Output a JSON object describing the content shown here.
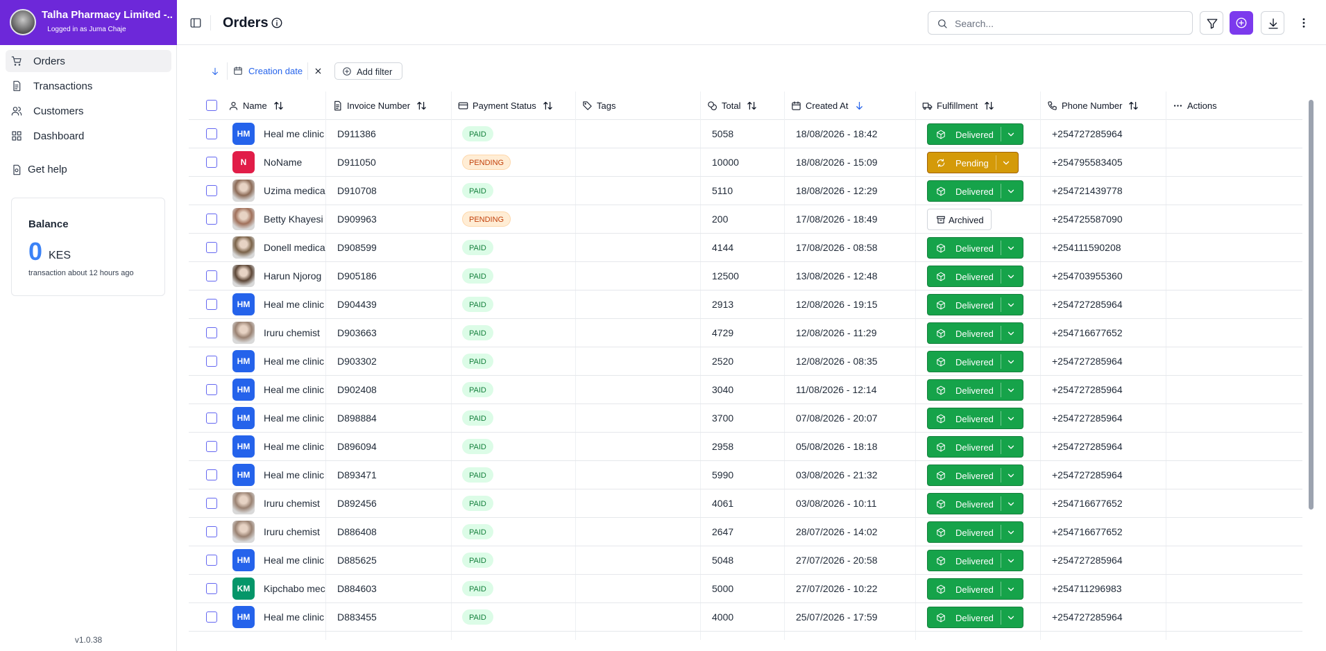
{
  "sidebar": {
    "org_name": "Talha Pharmacy Limited -...",
    "logged_in": "Logged in as Juma Chaje",
    "nav": [
      "Orders",
      "Transactions",
      "Customers",
      "Dashboard"
    ],
    "help": "Get help",
    "balance": {
      "title": "Balance",
      "amount": "0",
      "currency": "KES",
      "note": "transaction about 12 hours ago"
    },
    "version": "v1.0.38"
  },
  "header": {
    "title": "Orders",
    "search_placeholder": "Search..."
  },
  "filters": {
    "active": "Creation date",
    "add": "Add filter"
  },
  "table": {
    "columns": [
      "Name",
      "Invoice Number",
      "Payment Status",
      "Tags",
      "Total",
      "Created At",
      "Fulfillment",
      "Phone Number",
      "Actions"
    ],
    "rows": [
      [
        "HM",
        "#2563eb",
        "Heal me clinic",
        "D911386",
        "PAID",
        5058,
        "18/08/2026 - 18:42",
        "Delivered",
        "+254727285964"
      ],
      [
        "N",
        "#e11d48",
        "NoName",
        "D911050",
        "PENDING",
        10000,
        "18/08/2026 - 15:09",
        "Pending",
        "+254795583405"
      ],
      [
        null,
        "#8c6b57",
        "Uzima medica",
        "D910708",
        "PAID",
        5110,
        "18/08/2026 - 12:29",
        "Delivered",
        "+254721439778"
      ],
      [
        null,
        "#a0705a",
        "Betty Khayesi",
        "D909963",
        "PENDING",
        200,
        "17/08/2026 - 18:49",
        "Archived",
        "+254725587090"
      ],
      [
        null,
        "#7a6248",
        "Donell medica",
        "D908599",
        "PAID",
        4144,
        "17/08/2026 - 08:58",
        "Delivered",
        "+254111590208"
      ],
      [
        null,
        "#5c4636",
        "Harun Njorog",
        "D905186",
        "PAID",
        12500,
        "13/08/2026 - 12:48",
        "Delivered",
        "+254703955360"
      ],
      [
        "HM",
        "#2563eb",
        "Heal me clinic",
        "D904439",
        "PAID",
        2913,
        "12/08/2026 - 19:15",
        "Delivered",
        "+254727285964"
      ],
      [
        null,
        "#9a8272",
        "Iruru chemist",
        "D903663",
        "PAID",
        4729,
        "12/08/2026 - 11:29",
        "Delivered",
        "+254716677652"
      ],
      [
        "HM",
        "#2563eb",
        "Heal me clinic",
        "D903302",
        "PAID",
        2520,
        "12/08/2026 - 08:35",
        "Delivered",
        "+254727285964"
      ],
      [
        "HM",
        "#2563eb",
        "Heal me clinic",
        "D902408",
        "PAID",
        3040,
        "11/08/2026 - 12:14",
        "Delivered",
        "+254727285964"
      ],
      [
        "HM",
        "#2563eb",
        "Heal me clinic",
        "D898884",
        "PAID",
        3700,
        "07/08/2026 - 20:07",
        "Delivered",
        "+254727285964"
      ],
      [
        "HM",
        "#2563eb",
        "Heal me clinic",
        "D896094",
        "PAID",
        2958,
        "05/08/2026 - 18:18",
        "Delivered",
        "+254727285964"
      ],
      [
        "HM",
        "#2563eb",
        "Heal me clinic",
        "D893471",
        "PAID",
        5990,
        "03/08/2026 - 21:32",
        "Delivered",
        "+254727285964"
      ],
      [
        null,
        "#9a8272",
        "Iruru chemist",
        "D892456",
        "PAID",
        4061,
        "03/08/2026 - 10:11",
        "Delivered",
        "+254716677652"
      ],
      [
        null,
        "#9a8272",
        "Iruru chemist",
        "D886408",
        "PAID",
        2647,
        "28/07/2026 - 14:02",
        "Delivered",
        "+254716677652"
      ],
      [
        "HM",
        "#2563eb",
        "Heal me clinic",
        "D885625",
        "PAID",
        5048,
        "27/07/2026 - 20:58",
        "Delivered",
        "+254727285964"
      ],
      [
        "KM",
        "#059669",
        "Kipchabo mec",
        "D884603",
        "PAID",
        5000,
        "27/07/2026 - 10:22",
        "Delivered",
        "+254711296983"
      ],
      [
        "HM",
        "#2563eb",
        "Heal me clinic",
        "D883455",
        "PAID",
        4000,
        "25/07/2026 - 17:59",
        "Delivered",
        "+254727285964"
      ]
    ]
  }
}
